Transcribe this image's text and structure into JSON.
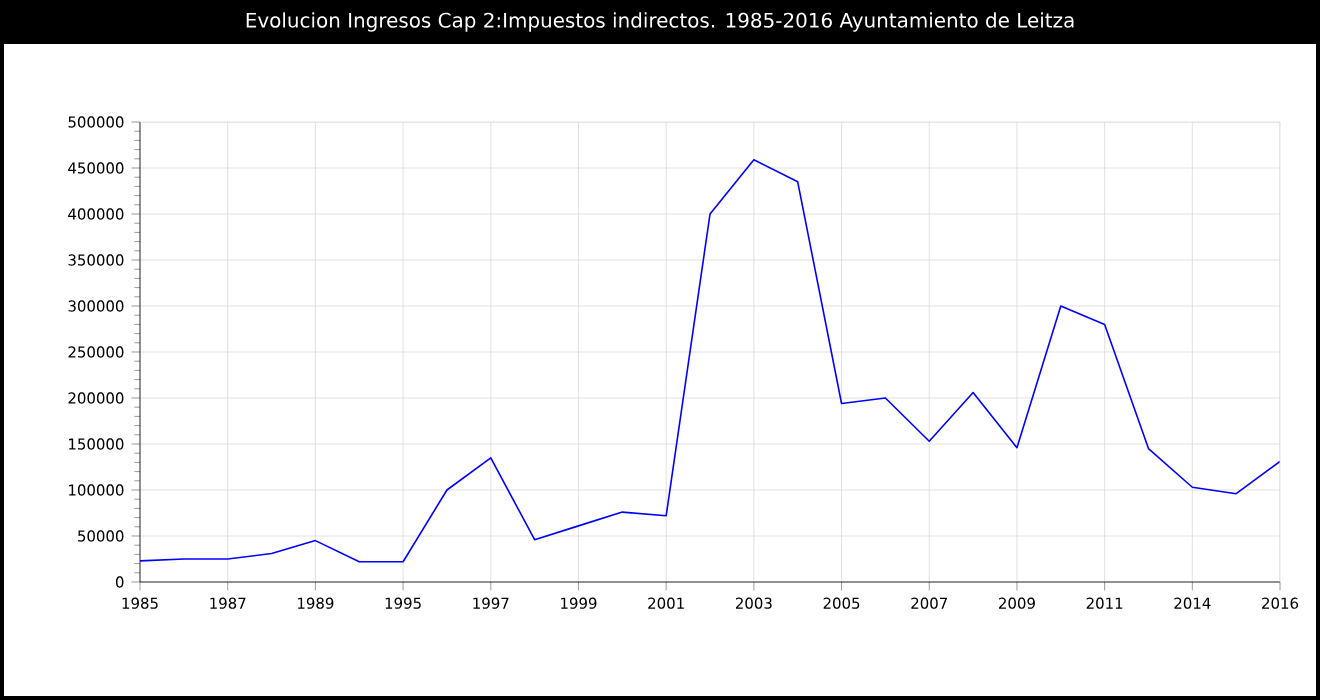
{
  "chart_data": {
    "type": "line",
    "title": "Evolucion Ingresos Cap 2:Impuestos indirectos. 1985-2016 Ayuntamiento de Leitza",
    "categories": [
      "1985",
      null,
      "1987",
      null,
      "1989",
      null,
      "1995",
      null,
      "1997",
      null,
      "1999",
      null,
      "2001",
      null,
      "2003",
      null,
      "2005",
      null,
      "2007",
      null,
      "2009",
      null,
      "2011",
      null,
      "2014",
      null,
      "2016"
    ],
    "series": [
      {
        "color": "#0000ff",
        "values": [
          23000,
          25000,
          25000,
          31000,
          45000,
          22000,
          22000,
          100000,
          135000,
          46000,
          61000,
          76000,
          72000,
          400000,
          459000,
          435000,
          194000,
          200000,
          153000,
          206000,
          146000,
          300000,
          280000,
          145000,
          103000,
          96000,
          131000
        ]
      }
    ],
    "ylim": [
      0,
      500000
    ],
    "yticks": [
      0,
      50000,
      100000,
      150000,
      200000,
      250000,
      300000,
      350000,
      400000,
      450000,
      500000
    ],
    "grid": true,
    "marker": "none",
    "line_style": "solid"
  }
}
